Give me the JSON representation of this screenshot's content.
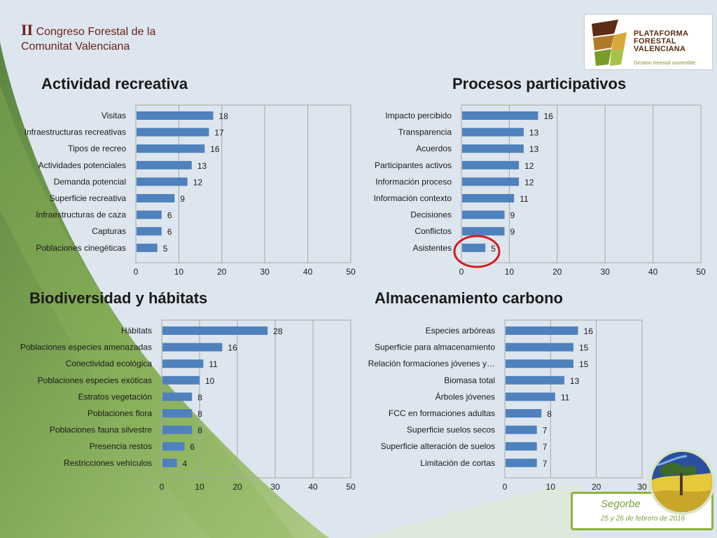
{
  "header": {
    "roman": "II",
    "line1": "Congreso Forestal de la",
    "line2": "Comunitat Valenciana"
  },
  "logo": {
    "line1": "PLATAFORMA",
    "line2": "FORESTAL",
    "line3": "VALENCIANA",
    "tagline": "Gestión forestal sostenible"
  },
  "badge": {
    "place": "Segorbe",
    "date": "25 y 26 de febrero de 2016"
  },
  "colors": {
    "bar": "#4f81bd",
    "annotation_circle": "#d7191c",
    "green_background": "#6e9a3c",
    "title_text": "#6b1f1a"
  },
  "chart_data": [
    {
      "type": "bar",
      "orientation": "horizontal",
      "title": "Actividad recreativa",
      "categories": [
        "Visitas",
        "Infraestructuras recreativas",
        "Tipos de recreo",
        "Actividades potenciales",
        "Demanda potencial",
        "Superficie recreativa",
        "Infraestructuras de caza",
        "Capturas",
        "Poblaciones cinegéticas"
      ],
      "values": [
        18,
        17,
        16,
        13,
        12,
        9,
        6,
        6,
        5
      ],
      "xlim": [
        0,
        50
      ],
      "ticks": [
        "0",
        "10",
        "20",
        "30",
        "40",
        "50"
      ],
      "grid": true,
      "legend": "none"
    },
    {
      "type": "bar",
      "orientation": "horizontal",
      "title": "Procesos participativos",
      "categories": [
        "Impacto percibido",
        "Transparencia",
        "Acuerdos",
        "Participantes activos",
        "Información proceso",
        "Información contexto",
        "Decisiones",
        "Conflictos",
        "Asistentes"
      ],
      "values": [
        16,
        13,
        13,
        12,
        12,
        11,
        9,
        9,
        5
      ],
      "xlim": [
        0,
        50
      ],
      "ticks": [
        "0",
        "10",
        "20",
        "30",
        "40",
        "50"
      ],
      "grid": true,
      "legend": "none",
      "highlighted_category": "Asistentes"
    },
    {
      "type": "bar",
      "orientation": "horizontal",
      "title": "Biodiversidad y hábitats",
      "categories": [
        "Hábitats",
        "Poblaciones especies amenazadas",
        "Conectividad ecológica",
        "Poblaciones especies exóticas",
        "Estratos vegetación",
        "Poblaciones flora",
        "Poblaciones fauna silvestre",
        "Presencia restos",
        "Restricciones vehículos"
      ],
      "values": [
        28,
        16,
        11,
        10,
        8,
        8,
        8,
        6,
        4
      ],
      "xlim": [
        0,
        50
      ],
      "ticks": [
        "0",
        "10",
        "20",
        "30",
        "40",
        "50"
      ],
      "grid": true,
      "legend": "none"
    },
    {
      "type": "bar",
      "orientation": "horizontal",
      "title": "Almacenamiento carbono",
      "categories": [
        "Especies arbóreas",
        "Superficie para almacenamiento",
        "Relación formaciones jóvenes y…",
        "Biomasa total",
        "Árboles jóvenes",
        "FCC en formaciones adultas",
        "Superficie suelos secos",
        "Superficie alteración de suelos",
        "Limitación de cortas"
      ],
      "values": [
        16,
        15,
        15,
        13,
        11,
        8,
        7,
        7,
        7
      ],
      "xlim": [
        0,
        30
      ],
      "ticks": [
        "0",
        "10",
        "20",
        "30"
      ],
      "grid": true,
      "legend": "none"
    }
  ]
}
